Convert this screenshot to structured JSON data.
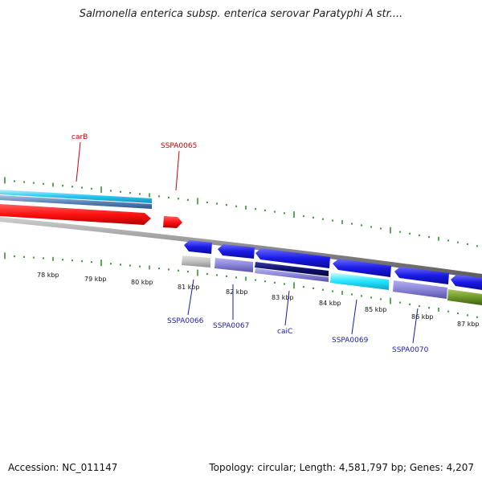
{
  "title": "Salmonella enterica subsp. enterica serovar Paratyphi A str....",
  "footer": {
    "accession": "Accession: NC_011147",
    "summary": "Topology: circular; Length: 4,581,797 bp; Genes: 4,207"
  },
  "ticks": [
    "78 kbp",
    "79 kbp",
    "80 kbp",
    "81 kbp",
    "82 kbp",
    "83 kbp",
    "84 kbp",
    "85 kbp",
    "86 kbp",
    "87 kbp"
  ],
  "genes_forward": [
    "carB",
    "SSPA0065"
  ],
  "genes_reverse": [
    "SSPA0066",
    "SSPA0067",
    "caiC",
    "SSPA0069",
    "SSPA0070"
  ],
  "colors": {
    "forward_gene": "#ff1a1a",
    "reverse_gene": "#1010e0",
    "backbone": "#888888",
    "tick": "#118811",
    "label_forward": "#cc0000",
    "label_reverse": "#1a1aa8"
  }
}
